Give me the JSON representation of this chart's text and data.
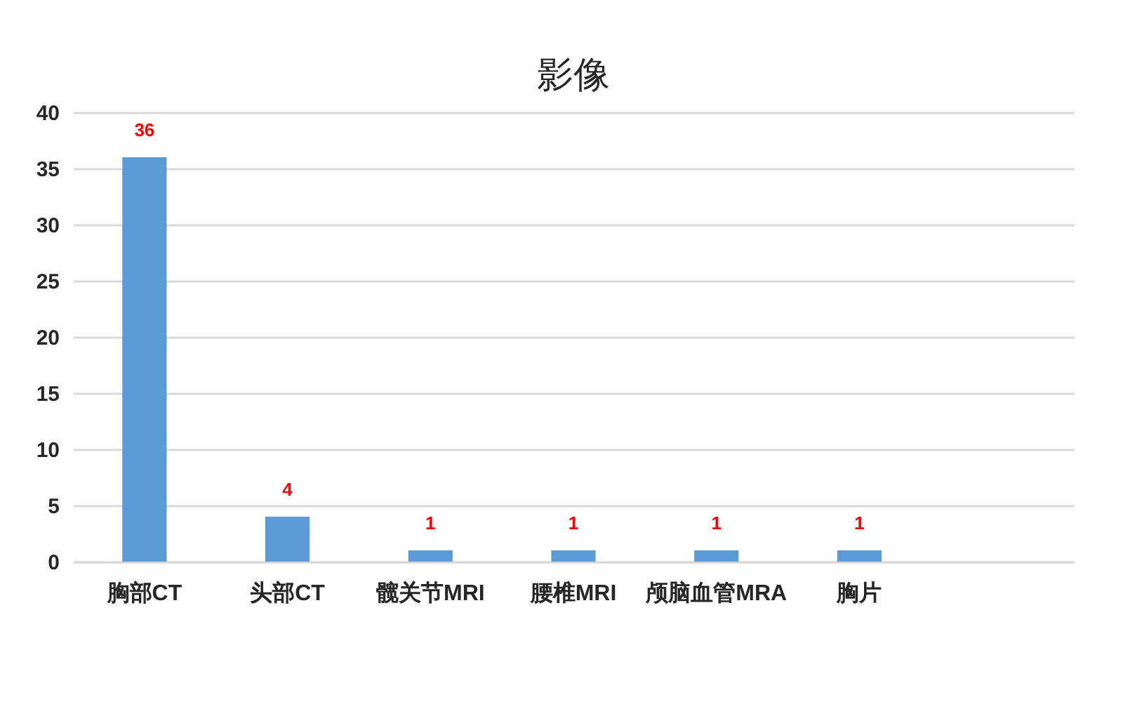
{
  "chart_data": {
    "type": "bar",
    "title": "影像",
    "categories": [
      "胸部CT",
      "头部CT",
      "髋关节MRI",
      "腰椎MRI",
      "颅脑血管MRA",
      "胸片",
      null
    ],
    "values": [
      36,
      4,
      1,
      1,
      1,
      1,
      null
    ],
    "color": "#5b9bd5",
    "ylim": [
      0,
      40
    ],
    "yticks": [
      0,
      5,
      10,
      15,
      20,
      25,
      30,
      35,
      40
    ],
    "grid": "y",
    "data_labels": true
  }
}
